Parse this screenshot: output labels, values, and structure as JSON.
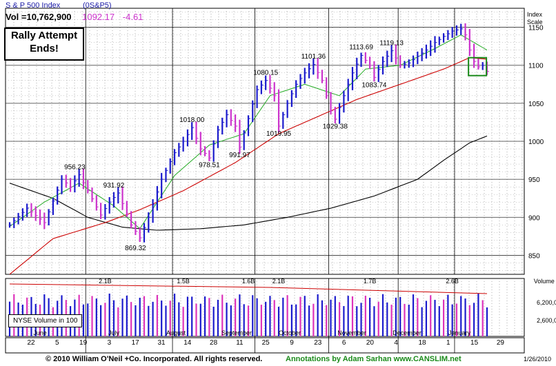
{
  "header": {
    "index_name": "S & P 500 Index",
    "symbol": "(0S&P5)",
    "vol_label": "Vol =10,762,900",
    "last_value": "1092.17",
    "change": "-4.61"
  },
  "callout": {
    "line1": "Rally Attempt",
    "line2": "Ends!"
  },
  "volume_legend": "NYSE Volume in 100",
  "footer": {
    "copyright": "© 2010 William O'Neil +Co. Incorporated. All rights reserved.",
    "annotation": "Annotations by Adam Sarhan www.CANSLIM.net",
    "date": "1/26/2010"
  },
  "chart_data": {
    "type": "bar",
    "price_axis": {
      "title": "Index Scale",
      "ticks": [
        850,
        900,
        950,
        1000,
        1050,
        1100,
        1150
      ],
      "range": [
        825,
        1175
      ]
    },
    "volume_axis": {
      "title": "Volume (00)",
      "tick_labels": [
        "6,200,000",
        "2,600,000"
      ]
    },
    "x_tick_labels": [
      "22",
      "5",
      "19",
      "3",
      "17",
      "31",
      "14",
      "28",
      "11",
      "25",
      "9",
      "23",
      "6",
      "20",
      "4",
      "18",
      "1",
      "15",
      "29"
    ],
    "month_labels": [
      "June",
      "July",
      "August",
      "September",
      "October",
      "November",
      "December",
      "January"
    ],
    "price_annotations": [
      {
        "label": "956.23",
        "value": 956.23
      },
      {
        "label": "931.92",
        "value": 931.92
      },
      {
        "label": "869.32",
        "value": 869.32
      },
      {
        "label": "1018.00",
        "value": 1018.0
      },
      {
        "label": "978.51",
        "value": 978.51
      },
      {
        "label": "991.97",
        "value": 991.97
      },
      {
        "label": "1080.15",
        "value": 1080.15
      },
      {
        "label": "1019.95",
        "value": 1019.95
      },
      {
        "label": "1101.36",
        "value": 1101.36
      },
      {
        "label": "1029.38",
        "value": 1029.38
      },
      {
        "label": "1113.69",
        "value": 1113.69
      },
      {
        "label": "1083.74",
        "value": 1083.74
      },
      {
        "label": "1119.13",
        "value": 1119.13
      }
    ],
    "volume_annotations": [
      "2.1B",
      "1.5B",
      "1.6B",
      "2.1B",
      "1.7B",
      "2.6B"
    ],
    "price_path": [
      [
        0,
        890
      ],
      [
        4,
        912
      ],
      [
        8,
        893
      ],
      [
        12,
        950
      ],
      [
        14,
        940
      ],
      [
        16,
        956
      ],
      [
        18,
        935
      ],
      [
        21,
        903
      ],
      [
        23,
        920
      ],
      [
        25,
        932
      ],
      [
        28,
        890
      ],
      [
        30,
        873
      ],
      [
        32,
        900
      ],
      [
        35,
        950
      ],
      [
        38,
        985
      ],
      [
        40,
        1000
      ],
      [
        42,
        1018
      ],
      [
        44,
        990
      ],
      [
        46,
        978
      ],
      [
        48,
        1015
      ],
      [
        50,
        1035
      ],
      [
        52,
        1020
      ],
      [
        53,
        992
      ],
      [
        55,
        1030
      ],
      [
        57,
        1068
      ],
      [
        59,
        1080
      ],
      [
        61,
        1060
      ],
      [
        62,
        1020
      ],
      [
        64,
        1050
      ],
      [
        66,
        1075
      ],
      [
        68,
        1090
      ],
      [
        70,
        1101
      ],
      [
        72,
        1080
      ],
      [
        74,
        1040
      ],
      [
        75,
        1029
      ],
      [
        77,
        1060
      ],
      [
        79,
        1090
      ],
      [
        81,
        1113
      ],
      [
        83,
        1100
      ],
      [
        84,
        1084
      ],
      [
        86,
        1105
      ],
      [
        88,
        1119
      ],
      [
        90,
        1100
      ],
      [
        92,
        1103
      ],
      [
        94,
        1112
      ],
      [
        96,
        1120
      ],
      [
        98,
        1130
      ],
      [
        100,
        1138
      ],
      [
        102,
        1145
      ],
      [
        104,
        1148
      ],
      [
        105,
        1140
      ],
      [
        106,
        1120
      ],
      [
        107,
        1105
      ],
      [
        108,
        1098
      ],
      [
        109,
        1100
      ],
      [
        110,
        1092
      ]
    ],
    "ma50_path": [
      [
        0,
        825
      ],
      [
        10,
        872
      ],
      [
        22,
        893
      ],
      [
        30,
        910
      ],
      [
        40,
        935
      ],
      [
        52,
        972
      ],
      [
        62,
        1010
      ],
      [
        70,
        1030
      ],
      [
        80,
        1055
      ],
      [
        90,
        1075
      ],
      [
        100,
        1095
      ],
      [
        106,
        1110
      ],
      [
        110,
        1108
      ]
    ],
    "ma10_path": [
      [
        0,
        888
      ],
      [
        8,
        920
      ],
      [
        16,
        945
      ],
      [
        24,
        915
      ],
      [
        30,
        885
      ],
      [
        38,
        955
      ],
      [
        46,
        995
      ],
      [
        54,
        1010
      ],
      [
        60,
        1060
      ],
      [
        68,
        1075
      ],
      [
        76,
        1060
      ],
      [
        82,
        1095
      ],
      [
        90,
        1100
      ],
      [
        98,
        1122
      ],
      [
        104,
        1140
      ],
      [
        110,
        1120
      ]
    ],
    "ma200_path": [
      [
        0,
        945
      ],
      [
        10,
        925
      ],
      [
        18,
        900
      ],
      [
        26,
        887
      ],
      [
        34,
        883
      ],
      [
        44,
        885
      ],
      [
        54,
        890
      ],
      [
        64,
        900
      ],
      [
        74,
        912
      ],
      [
        84,
        928
      ],
      [
        94,
        950
      ],
      [
        100,
        975
      ],
      [
        106,
        998
      ],
      [
        110,
        1007
      ]
    ]
  }
}
